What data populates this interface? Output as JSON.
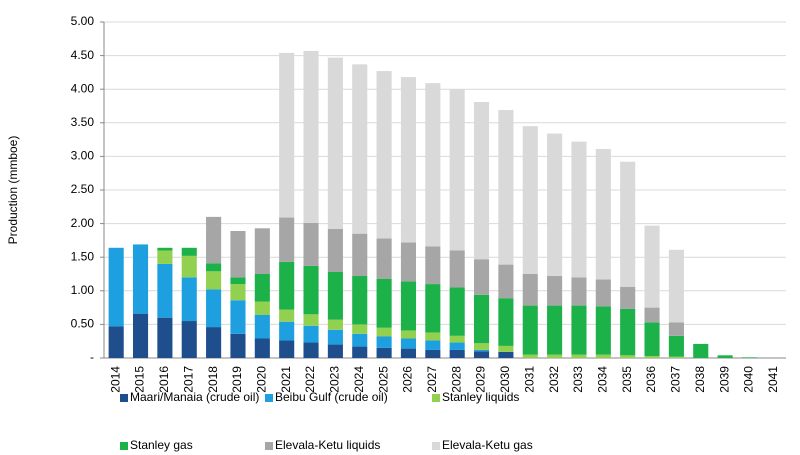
{
  "chart_data": {
    "type": "bar",
    "stacked": true,
    "y_label": "Production (mmboe)",
    "categories": [
      "2014",
      "2015",
      "2016",
      "2017",
      "2018",
      "2019",
      "2020",
      "2021",
      "2022",
      "2023",
      "2024",
      "2025",
      "2026",
      "2027",
      "2028",
      "2029",
      "2030",
      "2031",
      "2032",
      "2033",
      "2034",
      "2035",
      "2036",
      "2037",
      "2038",
      "2039",
      "2040",
      "2041"
    ],
    "series": [
      {
        "name": "Maari/Manaia (crude oil)",
        "color": "#1f4e8c",
        "values": [
          0.47,
          0.66,
          0.6,
          0.55,
          0.46,
          0.36,
          0.29,
          0.26,
          0.23,
          0.2,
          0.17,
          0.15,
          0.14,
          0.12,
          0.12,
          0.1,
          0.09,
          0,
          0,
          0,
          0,
          0,
          0,
          0,
          0,
          0,
          0,
          0
        ]
      },
      {
        "name": "Beibu Gulf (crude oil)",
        "color": "#1ea0e0",
        "values": [
          1.17,
          1.03,
          0.8,
          0.65,
          0.56,
          0.5,
          0.35,
          0.28,
          0.25,
          0.22,
          0.19,
          0.17,
          0.15,
          0.14,
          0.11,
          0.02,
          0,
          0,
          0,
          0,
          0,
          0,
          0,
          0,
          0,
          0,
          0,
          0
        ]
      },
      {
        "name": "Stanley liquids",
        "color": "#92d050",
        "values": [
          0,
          0,
          0.2,
          0.32,
          0.27,
          0.24,
          0.2,
          0.18,
          0.17,
          0.15,
          0.14,
          0.13,
          0.12,
          0.12,
          0.1,
          0.1,
          0.09,
          0.05,
          0.05,
          0.05,
          0.05,
          0.04,
          0.03,
          0.02,
          0,
          0,
          0,
          0
        ]
      },
      {
        "name": "Stanley gas",
        "color": "#1db14a",
        "values": [
          0,
          0,
          0.04,
          0.12,
          0.12,
          0.1,
          0.41,
          0.71,
          0.72,
          0.71,
          0.72,
          0.73,
          0.73,
          0.72,
          0.72,
          0.72,
          0.71,
          0.73,
          0.73,
          0.73,
          0.72,
          0.69,
          0.5,
          0.31,
          0.21,
          0.04,
          0.01,
          0
        ]
      },
      {
        "name": "Elevala-Ketu liquids",
        "color": "#a6a6a6",
        "values": [
          0,
          0,
          0,
          0,
          0.69,
          0.69,
          0.68,
          0.66,
          0.64,
          0.64,
          0.63,
          0.6,
          0.58,
          0.56,
          0.55,
          0.53,
          0.5,
          0.47,
          0.44,
          0.42,
          0.4,
          0.33,
          0.22,
          0.2,
          0,
          0,
          0,
          0
        ]
      },
      {
        "name": "Elevala-Ketu gas",
        "color": "#d9d9d9",
        "values": [
          0,
          0,
          0,
          0,
          0,
          0,
          0,
          2.45,
          2.56,
          2.55,
          2.52,
          2.49,
          2.46,
          2.43,
          2.4,
          2.34,
          2.3,
          2.2,
          2.12,
          2.02,
          1.94,
          1.86,
          1.22,
          1.08,
          0,
          0,
          0,
          0
        ]
      }
    ],
    "ylim": [
      0,
      5
    ],
    "yticks": [
      {
        "value": 0,
        "label": "-"
      },
      {
        "value": 0.5,
        "label": "0.50"
      },
      {
        "value": 1,
        "label": "1.00"
      },
      {
        "value": 1.5,
        "label": "1.50"
      },
      {
        "value": 2,
        "label": "2.00"
      },
      {
        "value": 2.5,
        "label": "2.50"
      },
      {
        "value": 3,
        "label": "3.00"
      },
      {
        "value": 3.5,
        "label": "3.50"
      },
      {
        "value": 4,
        "label": "4.00"
      },
      {
        "value": 4.5,
        "label": "4.50"
      },
      {
        "value": 5,
        "label": "5.00"
      }
    ],
    "grid": true
  }
}
